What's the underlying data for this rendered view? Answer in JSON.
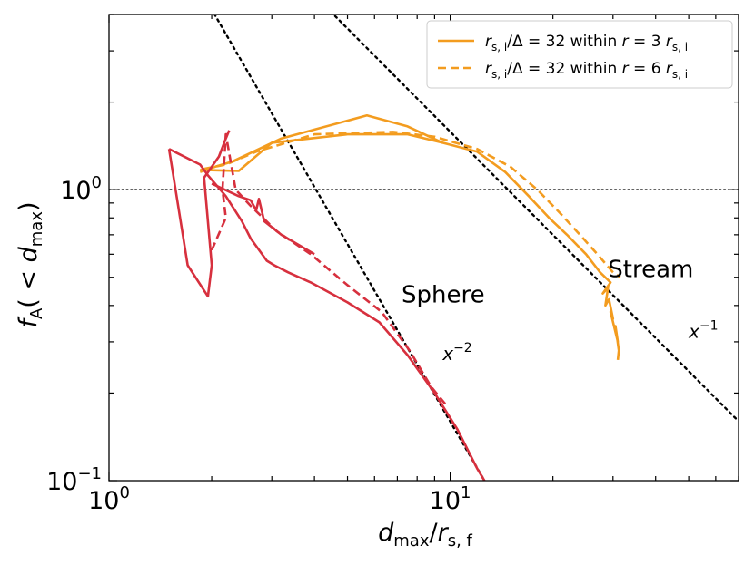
{
  "chart_data": {
    "type": "line",
    "xscale": "log",
    "yscale": "log",
    "xlim": [
      1.0,
      70.0
    ],
    "ylim": [
      0.1,
      4.0
    ],
    "xlabel": "d_max/r_s,f",
    "ylabel": "f_A(< d_max)",
    "x_tick_labels": [
      {
        "value": 1,
        "base": "10",
        "exp": "0"
      },
      {
        "value": 10,
        "base": "10",
        "exp": "1"
      }
    ],
    "y_tick_labels": [
      {
        "value": 0.1,
        "base": "10",
        "exp": "−1"
      },
      {
        "value": 1,
        "base": "10",
        "exp": "0"
      }
    ],
    "legend": [
      {
        "label": "r_s,i/Δ = 32 within r = 3 r_s,i",
        "style": "solid",
        "color": "#f39c1f"
      },
      {
        "label": "r_s,i/Δ = 32 within r = 6 r_s,i",
        "style": "dashed",
        "color": "#f39c1f"
      }
    ],
    "annotations": [
      {
        "text": "Sphere",
        "x": 7.2,
        "y": 0.41,
        "size": "big"
      },
      {
        "text": "Stream",
        "x": 29.0,
        "y": 0.5,
        "size": "big"
      },
      {
        "text": "x",
        "sup": "−2",
        "x": 9.5,
        "y": 0.26,
        "size": "small"
      },
      {
        "text": "x",
        "sup": "−1",
        "x": 50.0,
        "y": 0.31,
        "size": "small"
      }
    ],
    "reference_lines": [
      {
        "name": "unity",
        "style": "dotted",
        "color": "#000000",
        "y": 1.0
      },
      {
        "name": "slope-minus-two",
        "style": "dotted",
        "color": "#000000",
        "label": "x^-2",
        "x": [
          1.95,
          12.6
        ],
        "y": [
          4.38,
          0.1
        ]
      },
      {
        "name": "slope-minus-one",
        "style": "dotted",
        "color": "#000000",
        "label": "x^-1",
        "x": [
          4.33,
          70.0
        ],
        "y": [
          4.24,
          0.16
        ]
      }
    ],
    "series": [
      {
        "name": "stream-3rs",
        "group": "Stream",
        "color": "#f39c1f",
        "style": "solid",
        "x": [
          1.85,
          2.05,
          2.3,
          3.2,
          5.7,
          7.5,
          9.5,
          12.0,
          14.5,
          17.0,
          19.5,
          22.0,
          25.0,
          27.5,
          29.5,
          28.0,
          29.0,
          28.5,
          29.2,
          30.0,
          29.5,
          31.0,
          30.5,
          31.2,
          31.0
        ],
        "y": [
          1.15,
          1.2,
          1.25,
          1.5,
          1.8,
          1.65,
          1.45,
          1.35,
          1.15,
          0.95,
          0.8,
          0.7,
          0.6,
          0.52,
          0.48,
          0.44,
          0.46,
          0.4,
          0.42,
          0.36,
          0.38,
          0.3,
          0.34,
          0.28,
          0.26
        ]
      },
      {
        "name": "stream-3rs-inner",
        "group": "Stream",
        "color": "#f39c1f",
        "style": "solid",
        "x": [
          1.85,
          2.4,
          3.0,
          5.0,
          7.5,
          9.5
        ],
        "y": [
          1.17,
          1.16,
          1.45,
          1.55,
          1.55,
          1.45
        ]
      },
      {
        "name": "stream-6rs",
        "group": "Stream",
        "color": "#f39c1f",
        "style": "dashed",
        "x": [
          1.9,
          2.2,
          2.7,
          4.0,
          6.8,
          9.0,
          12.0,
          15.0,
          18.0,
          21.0,
          24.0,
          27.0,
          30.0,
          31.5
        ],
        "y": [
          1.18,
          1.22,
          1.35,
          1.55,
          1.58,
          1.52,
          1.38,
          1.2,
          1.0,
          0.83,
          0.7,
          0.6,
          0.52,
          0.5
        ]
      },
      {
        "name": "sphere-3rs",
        "group": "Sphere",
        "color": "#d7303e",
        "style": "solid",
        "x": [
          1.5,
          1.85,
          1.95,
          2.2,
          2.45,
          2.6,
          2.9,
          3.05,
          3.35,
          3.9,
          5.0,
          6.2,
          7.5,
          9.0,
          10.5,
          12.0,
          12.6
        ],
        "y": [
          1.38,
          1.22,
          1.12,
          0.95,
          0.78,
          0.68,
          0.57,
          0.55,
          0.52,
          0.48,
          0.41,
          0.35,
          0.27,
          0.2,
          0.15,
          0.11,
          0.1
        ]
      },
      {
        "name": "sphere-3rs-tail",
        "group": "Sphere",
        "color": "#d7303e",
        "style": "solid",
        "x": [
          1.5,
          1.7,
          1.95,
          2.0,
          1.9,
          2.1,
          2.2,
          2.25
        ],
        "y": [
          1.38,
          0.55,
          0.43,
          0.55,
          1.1,
          1.3,
          1.5,
          1.6
        ]
      },
      {
        "name": "sphere-3rs-zigzag",
        "group": "Sphere",
        "color": "#d7303e",
        "style": "solid",
        "x": [
          2.0,
          2.4,
          2.6,
          2.7,
          2.75,
          2.85,
          3.2,
          4.0
        ],
        "y": [
          1.05,
          0.95,
          0.92,
          0.85,
          0.93,
          0.78,
          0.7,
          0.6
        ]
      },
      {
        "name": "sphere-6rs",
        "group": "Sphere",
        "color": "#d7303e",
        "style": "dashed",
        "x": [
          2.0,
          2.2,
          2.15,
          2.2,
          2.35,
          2.6,
          3.1,
          3.9,
          5.0,
          6.3,
          7.6,
          8.8,
          9.8
        ],
        "y": [
          0.62,
          0.8,
          1.0,
          1.55,
          1.0,
          0.88,
          0.72,
          0.6,
          0.47,
          0.38,
          0.28,
          0.21,
          0.18
        ]
      }
    ]
  }
}
